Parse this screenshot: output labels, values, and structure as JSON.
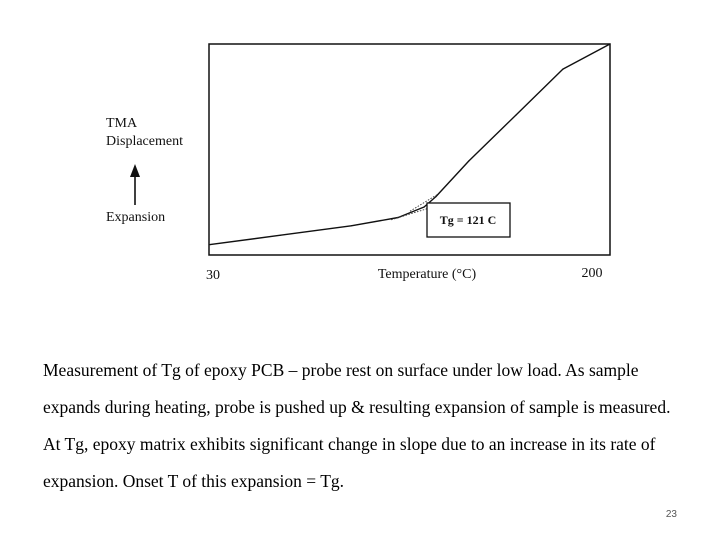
{
  "chart_data": {
    "type": "line",
    "title": "",
    "xlabel": "Temperature (°C)",
    "ylabel_lines": [
      "TMA",
      "Displacement"
    ],
    "direction_label": "Expansion",
    "x_tick_labels": [
      "30",
      "200"
    ],
    "xlim": [
      30,
      200
    ],
    "ylim": [
      0,
      1
    ],
    "grid": false,
    "series": [
      {
        "x": [
          30,
          60,
          90,
          110,
          121,
          126,
          140,
          160,
          180,
          200
        ],
        "y": [
          0.04,
          0.085,
          0.13,
          0.17,
          0.22,
          0.27,
          0.44,
          0.66,
          0.88,
          1.0
        ]
      }
    ],
    "annotation": {
      "text": "Tg = 121 C",
      "x": 121
    }
  },
  "caption": "Measurement of Tg of epoxy PCB – probe rest on surface under low load. As sample expands during heating, probe  is pushed up & resulting expansion of sample is measured. At Tg, epoxy matrix exhibits significant change in slope due to an increase in its rate of expansion. Onset T of this expansion = Tg.",
  "slide_number": "23"
}
